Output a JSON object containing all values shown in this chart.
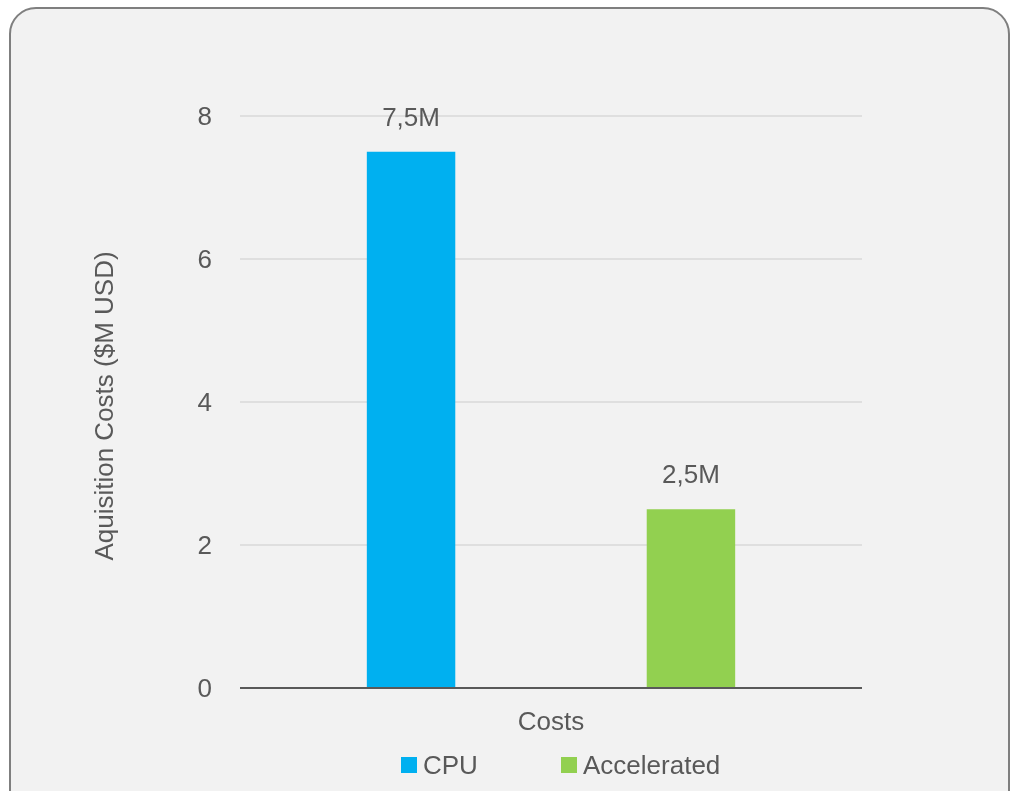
{
  "chart_data": {
    "type": "bar",
    "categories": [
      "Costs"
    ],
    "ylabel": "Aquisition Costs ($M USD)",
    "series": [
      {
        "name": "CPU",
        "color": "#00b0f0",
        "values": [
          7.5
        ],
        "value_labels": [
          "7,5M"
        ]
      },
      {
        "name": "Accelerated",
        "color": "#92d050",
        "values": [
          2.5
        ],
        "value_labels": [
          "2,5M"
        ]
      }
    ],
    "ylim": [
      0,
      8
    ],
    "yticks": [
      0,
      2,
      4,
      6,
      8
    ],
    "grid": "y",
    "legend": "bottom"
  }
}
